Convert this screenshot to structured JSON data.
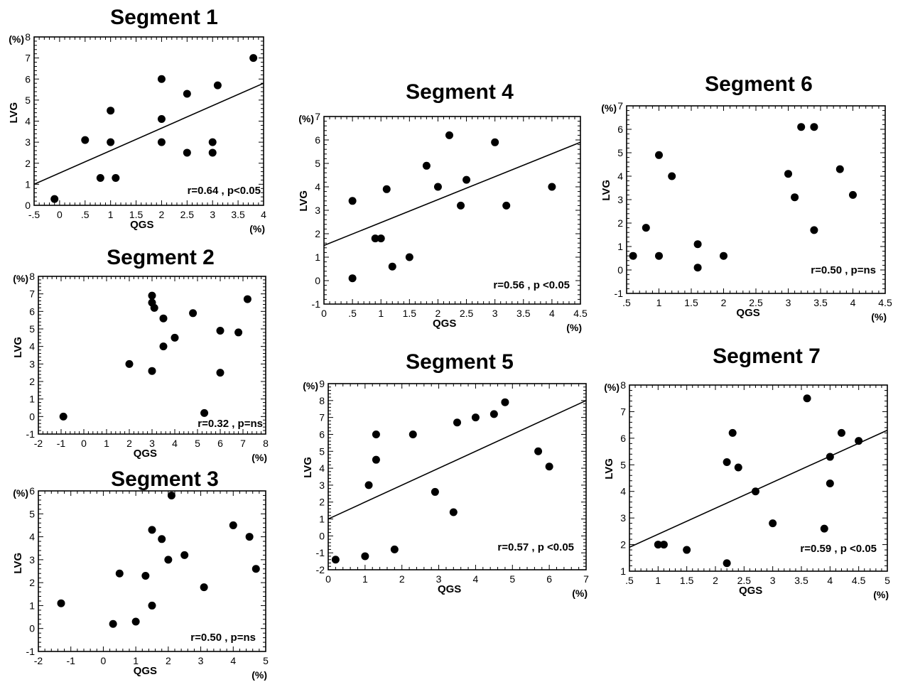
{
  "chart_data": [
    {
      "type": "scatter",
      "title": "Segment 1",
      "xlabel": "QGS",
      "ylabel": "LVG",
      "x_unit": "(%)",
      "y_unit": "(%)",
      "xlim": [
        -0.5,
        4
      ],
      "ylim": [
        0,
        8
      ],
      "xticks": [
        "-.5",
        "0",
        ".5",
        "1",
        "1.5",
        "2",
        "2.5",
        "3",
        "3.5",
        "4"
      ],
      "yticks": [
        "0",
        "1",
        "2",
        "3",
        "4",
        "5",
        "6",
        "7",
        "8"
      ],
      "points": [
        [
          -0.1,
          0.3
        ],
        [
          0.5,
          3.1
        ],
        [
          0.8,
          1.3
        ],
        [
          1.0,
          4.5
        ],
        [
          1.0,
          3.0
        ],
        [
          1.1,
          1.3
        ],
        [
          2.0,
          6.0
        ],
        [
          2.0,
          4.1
        ],
        [
          2.0,
          3.0
        ],
        [
          2.5,
          5.3
        ],
        [
          2.5,
          2.5
        ],
        [
          3.0,
          3.0
        ],
        [
          3.0,
          2.5
        ],
        [
          3.1,
          5.7
        ],
        [
          3.8,
          7.0
        ]
      ],
      "regression": [
        [
          -0.5,
          1.0
        ],
        [
          4.0,
          5.8
        ]
      ],
      "stat": "r=0.64 , p<0.05"
    },
    {
      "type": "scatter",
      "title": "Segment 2",
      "xlabel": "QGS",
      "ylabel": "LVG",
      "x_unit": "(%)",
      "y_unit": "(%)",
      "xlim": [
        -2,
        8
      ],
      "ylim": [
        -1,
        8
      ],
      "xticks": [
        "-2",
        "-1",
        "0",
        "1",
        "2",
        "3",
        "4",
        "5",
        "6",
        "7",
        "8"
      ],
      "yticks": [
        "-1",
        "0",
        "1",
        "2",
        "3",
        "4",
        "5",
        "6",
        "7",
        "8"
      ],
      "points": [
        [
          -0.9,
          0.0
        ],
        [
          2.0,
          3.0
        ],
        [
          3.0,
          6.9
        ],
        [
          3.0,
          6.5
        ],
        [
          3.1,
          6.2
        ],
        [
          3.0,
          2.6
        ],
        [
          3.5,
          5.6
        ],
        [
          3.5,
          4.0
        ],
        [
          4.0,
          4.5
        ],
        [
          4.8,
          5.9
        ],
        [
          5.3,
          0.2
        ],
        [
          6.0,
          4.9
        ],
        [
          6.0,
          2.5
        ],
        [
          6.8,
          4.8
        ],
        [
          7.2,
          6.7
        ]
      ],
      "regression": null,
      "stat": "r=0.32 , p=ns"
    },
    {
      "type": "scatter",
      "title": "Segment 3",
      "xlabel": "QGS",
      "ylabel": "LVG",
      "x_unit": "(%)",
      "y_unit": "(%)",
      "xlim": [
        -2,
        5
      ],
      "ylim": [
        -1,
        6
      ],
      "xticks": [
        "-2",
        "-1",
        "0",
        "1",
        "2",
        "3",
        "4",
        "5"
      ],
      "yticks": [
        "-1",
        "0",
        "1",
        "2",
        "3",
        "4",
        "5",
        "6"
      ],
      "points": [
        [
          -1.3,
          1.1
        ],
        [
          0.3,
          0.2
        ],
        [
          0.5,
          2.4
        ],
        [
          1.0,
          0.3
        ],
        [
          1.3,
          2.3
        ],
        [
          1.5,
          4.3
        ],
        [
          1.5,
          1.0
        ],
        [
          1.8,
          3.9
        ],
        [
          2.0,
          3.0
        ],
        [
          2.1,
          5.8
        ],
        [
          2.5,
          3.2
        ],
        [
          3.1,
          1.8
        ],
        [
          4.0,
          4.5
        ],
        [
          4.5,
          4.0
        ],
        [
          4.7,
          2.6
        ]
      ],
      "regression": null,
      "stat": "r=0.50 , p=ns"
    },
    {
      "type": "scatter",
      "title": "Segment 4",
      "xlabel": "QGS",
      "ylabel": "LVG",
      "x_unit": "(%)",
      "y_unit": "(%)",
      "xlim": [
        0,
        4.5
      ],
      "ylim": [
        -1,
        7
      ],
      "xticks": [
        "0",
        ".5",
        "1",
        "1.5",
        "2",
        "2.5",
        "3",
        "3.5",
        "4",
        "4.5"
      ],
      "yticks": [
        "-1",
        "0",
        "1",
        "2",
        "3",
        "4",
        "5",
        "6",
        "7"
      ],
      "points": [
        [
          0.5,
          3.4
        ],
        [
          0.5,
          0.1
        ],
        [
          0.9,
          1.8
        ],
        [
          1.0,
          1.8
        ],
        [
          1.1,
          3.9
        ],
        [
          1.2,
          0.6
        ],
        [
          1.5,
          1.0
        ],
        [
          1.8,
          4.9
        ],
        [
          2.0,
          4.0
        ],
        [
          2.2,
          6.2
        ],
        [
          2.4,
          3.2
        ],
        [
          2.5,
          4.3
        ],
        [
          3.0,
          5.9
        ],
        [
          3.2,
          3.2
        ],
        [
          4.0,
          4.0
        ]
      ],
      "regression": [
        [
          0.0,
          1.5
        ],
        [
          4.5,
          5.9
        ]
      ],
      "stat": "r=0.56 , p <0.05"
    },
    {
      "type": "scatter",
      "title": "Segment 5",
      "xlabel": "QGS",
      "ylabel": "LVG",
      "x_unit": "(%)",
      "y_unit": "(%)",
      "xlim": [
        0,
        7
      ],
      "ylim": [
        -2,
        9
      ],
      "xticks": [
        "0",
        "1",
        "2",
        "3",
        "4",
        "5",
        "6",
        "7"
      ],
      "yticks": [
        "-2",
        "-1",
        "0",
        "1",
        "2",
        "3",
        "4",
        "5",
        "6",
        "7",
        "8",
        "9"
      ],
      "points": [
        [
          0.2,
          -1.4
        ],
        [
          1.0,
          -1.2
        ],
        [
          1.1,
          3.0
        ],
        [
          1.3,
          6.0
        ],
        [
          1.3,
          4.5
        ],
        [
          1.8,
          -0.8
        ],
        [
          2.3,
          6.0
        ],
        [
          2.9,
          2.6
        ],
        [
          3.4,
          1.4
        ],
        [
          3.5,
          6.7
        ],
        [
          4.0,
          7.0
        ],
        [
          4.5,
          7.2
        ],
        [
          4.8,
          7.9
        ],
        [
          5.7,
          5.0
        ],
        [
          6.0,
          4.1
        ]
      ],
      "regression": [
        [
          0.0,
          1.0
        ],
        [
          7.0,
          8.0
        ]
      ],
      "stat": "r=0.57 , p <0.05"
    },
    {
      "type": "scatter",
      "title": "Segment 6",
      "xlabel": "QGS",
      "ylabel": "LVG",
      "x_unit": "(%)",
      "y_unit": "(%)",
      "xlim": [
        0.5,
        4.5
      ],
      "ylim": [
        -1,
        7
      ],
      "xticks": [
        ".5",
        "1",
        "1.5",
        "2",
        "2.5",
        "3",
        "3.5",
        "4",
        "4.5"
      ],
      "yticks": [
        "-1",
        "0",
        "1",
        "2",
        "3",
        "4",
        "5",
        "6",
        "7"
      ],
      "points": [
        [
          0.6,
          0.6
        ],
        [
          0.8,
          1.8
        ],
        [
          1.0,
          4.9
        ],
        [
          1.0,
          0.6
        ],
        [
          1.2,
          4.0
        ],
        [
          1.6,
          1.1
        ],
        [
          1.6,
          0.1
        ],
        [
          2.0,
          0.6
        ],
        [
          3.0,
          4.1
        ],
        [
          3.1,
          3.1
        ],
        [
          3.2,
          6.1
        ],
        [
          3.4,
          6.1
        ],
        [
          3.4,
          1.7
        ],
        [
          3.8,
          4.3
        ],
        [
          4.0,
          3.2
        ]
      ],
      "regression": null,
      "stat": "r=0.50 , p=ns"
    },
    {
      "type": "scatter",
      "title": "Segment 7",
      "xlabel": "QGS",
      "ylabel": "LVG",
      "x_unit": "(%)",
      "y_unit": "(%)",
      "xlim": [
        0.5,
        5
      ],
      "ylim": [
        1,
        8
      ],
      "xticks": [
        ".5",
        "1",
        "1.5",
        "2",
        "2.5",
        "3",
        "3.5",
        "4",
        "4.5",
        "5"
      ],
      "yticks": [
        "1",
        "2",
        "3",
        "4",
        "5",
        "6",
        "7",
        "8"
      ],
      "points": [
        [
          1.0,
          2.0
        ],
        [
          1.1,
          2.0
        ],
        [
          1.5,
          1.8
        ],
        [
          2.2,
          5.1
        ],
        [
          2.2,
          1.3
        ],
        [
          2.3,
          6.2
        ],
        [
          2.4,
          4.9
        ],
        [
          2.7,
          4.0
        ],
        [
          3.0,
          2.8
        ],
        [
          3.6,
          7.5
        ],
        [
          3.9,
          2.6
        ],
        [
          4.0,
          5.3
        ],
        [
          4.0,
          4.3
        ],
        [
          4.2,
          6.2
        ],
        [
          4.5,
          5.9
        ]
      ],
      "regression": [
        [
          0.5,
          1.9
        ],
        [
          5.0,
          6.3
        ]
      ],
      "stat": "r=0.59 , p <0.05"
    }
  ]
}
